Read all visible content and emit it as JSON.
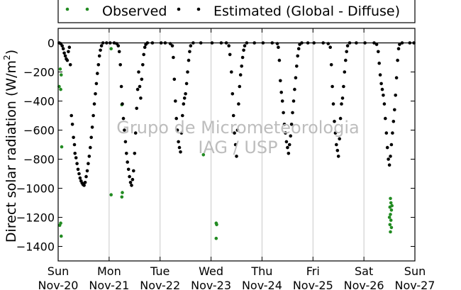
{
  "chart_data": {
    "type": "scatter",
    "ylabel": "Direct solar radiation (W/m²)",
    "ylabel_main": "Direct solar radiation (W/m",
    "ylabel_sup": "2",
    "ylabel_end": ")",
    "xlim": [
      0,
      7
    ],
    "ylim": [
      -1500,
      100
    ],
    "grid": "vertical",
    "legend_position": "top",
    "x_ticks": [
      {
        "x": 0,
        "day": "Sun",
        "date": "Nov-20"
      },
      {
        "x": 1,
        "day": "Mon",
        "date": "Nov-21"
      },
      {
        "x": 2,
        "day": "Tue",
        "date": "Nov-22"
      },
      {
        "x": 3,
        "day": "Wed",
        "date": "Nov-23"
      },
      {
        "x": 4,
        "day": "Thu",
        "date": "Nov-24"
      },
      {
        "x": 5,
        "day": "Fri",
        "date": "Nov-25"
      },
      {
        "x": 6,
        "day": "Sat",
        "date": "Nov-26"
      },
      {
        "x": 7,
        "day": "Sun",
        "date": "Nov-27"
      }
    ],
    "y_ticks": [
      0,
      -200,
      -400,
      -600,
      -800,
      -1000,
      -1200,
      -1400
    ],
    "watermark": [
      "Grupo de Micrometeorologia",
      "IAG / USP"
    ],
    "series": [
      {
        "name": "Observed",
        "color": "#228b22",
        "points": [
          [
            0.02,
            -300
          ],
          [
            0.04,
            -180
          ],
          [
            0.05,
            -320
          ],
          [
            0.06,
            -220
          ],
          [
            0.07,
            -715
          ],
          [
            0.03,
            -1255
          ],
          [
            0.05,
            -1240
          ],
          [
            0.06,
            -1330
          ],
          [
            1.04,
            -40
          ],
          [
            1.04,
            -1045
          ],
          [
            1.25,
            -425
          ],
          [
            1.26,
            -1030
          ],
          [
            1.25,
            -1060
          ],
          [
            2.85,
            -770
          ],
          [
            3.1,
            -1240
          ],
          [
            3.11,
            -1250
          ],
          [
            3.1,
            -1345
          ],
          [
            6.52,
            -1070
          ],
          [
            6.53,
            -1100
          ],
          [
            6.51,
            -1130
          ],
          [
            6.54,
            -1150
          ],
          [
            6.52,
            -1180
          ],
          [
            6.5,
            -1200
          ],
          [
            6.53,
            -1220
          ],
          [
            6.51,
            -1250
          ],
          [
            6.54,
            -1270
          ],
          [
            6.52,
            -1300
          ],
          [
            6.55,
            -1120
          ]
        ]
      },
      {
        "name": "Estimated (Global - Diffuse)",
        "color": "#000000",
        "points": [
          [
            0.02,
            0
          ],
          [
            0.05,
            -5
          ],
          [
            0.08,
            -20
          ],
          [
            0.1,
            -40
          ],
          [
            0.12,
            -70
          ],
          [
            0.14,
            -90
          ],
          [
            0.16,
            -110
          ],
          [
            0.18,
            -120
          ],
          [
            0.2,
            -60
          ],
          [
            0.22,
            -30
          ],
          [
            0.24,
            -150
          ],
          [
            0.26,
            -500
          ],
          [
            0.28,
            -560
          ],
          [
            0.3,
            -650
          ],
          [
            0.32,
            -700
          ],
          [
            0.33,
            -760
          ],
          [
            0.35,
            -790
          ],
          [
            0.37,
            -830
          ],
          [
            0.39,
            -870
          ],
          [
            0.41,
            -900
          ],
          [
            0.43,
            -930
          ],
          [
            0.45,
            -950
          ],
          [
            0.47,
            -965
          ],
          [
            0.49,
            -975
          ],
          [
            0.51,
            -980
          ],
          [
            0.53,
            -960
          ],
          [
            0.55,
            -920
          ],
          [
            0.57,
            -880
          ],
          [
            0.59,
            -830
          ],
          [
            0.61,
            -780
          ],
          [
            0.63,
            -720
          ],
          [
            0.65,
            -650
          ],
          [
            0.67,
            -580
          ],
          [
            0.69,
            -500
          ],
          [
            0.71,
            -420
          ],
          [
            0.73,
            -350
          ],
          [
            0.75,
            -280
          ],
          [
            0.77,
            -210
          ],
          [
            0.79,
            -150
          ],
          [
            0.81,
            -90
          ],
          [
            0.83,
            -50
          ],
          [
            0.85,
            -20
          ],
          [
            0.88,
            0
          ],
          [
            0.95,
            0
          ],
          [
            1.02,
            0
          ],
          [
            1.1,
            0
          ],
          [
            1.15,
            -5
          ],
          [
            1.18,
            -20
          ],
          [
            1.2,
            -60
          ],
          [
            1.22,
            -150
          ],
          [
            1.24,
            -300
          ],
          [
            1.26,
            -420
          ],
          [
            1.28,
            -520
          ],
          [
            1.3,
            -600
          ],
          [
            1.32,
            -680
          ],
          [
            1.34,
            -760
          ],
          [
            1.36,
            -820
          ],
          [
            1.38,
            -870
          ],
          [
            1.4,
            -920
          ],
          [
            1.42,
            -960
          ],
          [
            1.44,
            -980
          ],
          [
            1.46,
            -940
          ],
          [
            1.48,
            -880
          ],
          [
            1.5,
            -760
          ],
          [
            1.52,
            -620
          ],
          [
            1.54,
            -450
          ],
          [
            1.56,
            -320
          ],
          [
            1.58,
            -200
          ],
          [
            1.6,
            -300
          ],
          [
            1.62,
            -380
          ],
          [
            1.64,
            -250
          ],
          [
            1.66,
            -150
          ],
          [
            1.68,
            -80
          ],
          [
            1.7,
            -30
          ],
          [
            1.72,
            -10
          ],
          [
            1.75,
            0
          ],
          [
            1.85,
            0
          ],
          [
            2.02,
            0
          ],
          [
            2.1,
            0
          ],
          [
            2.2,
            -5
          ],
          [
            2.24,
            -20
          ],
          [
            2.26,
            -100
          ],
          [
            2.28,
            -250
          ],
          [
            2.3,
            -400
          ],
          [
            2.32,
            -520
          ],
          [
            2.34,
            -600
          ],
          [
            2.36,
            -680
          ],
          [
            2.38,
            -720
          ],
          [
            2.4,
            -750
          ],
          [
            2.42,
            -620
          ],
          [
            2.44,
            -500
          ],
          [
            2.46,
            -420
          ],
          [
            2.48,
            -380
          ],
          [
            2.5,
            -350
          ],
          [
            2.52,
            -280
          ],
          [
            2.54,
            -200
          ],
          [
            2.56,
            -120
          ],
          [
            2.58,
            -60
          ],
          [
            2.6,
            -20
          ],
          [
            2.65,
            0
          ],
          [
            2.8,
            0
          ],
          [
            3.02,
            0
          ],
          [
            3.2,
            0
          ],
          [
            3.3,
            0
          ],
          [
            3.35,
            -20
          ],
          [
            3.37,
            -80
          ],
          [
            3.4,
            -200
          ],
          [
            3.42,
            -350
          ],
          [
            3.44,
            -500
          ],
          [
            3.46,
            -620
          ],
          [
            3.48,
            -700
          ],
          [
            3.5,
            -780
          ],
          [
            3.52,
            -600
          ],
          [
            3.54,
            -420
          ],
          [
            3.56,
            -300
          ],
          [
            3.58,
            -220
          ],
          [
            3.6,
            -160
          ],
          [
            3.62,
            -100
          ],
          [
            3.64,
            -50
          ],
          [
            3.66,
            -20
          ],
          [
            3.7,
            0
          ],
          [
            3.85,
            0
          ],
          [
            4.02,
            0
          ],
          [
            4.2,
            0
          ],
          [
            4.3,
            -5
          ],
          [
            4.32,
            -30
          ],
          [
            4.34,
            -120
          ],
          [
            4.36,
            -260
          ],
          [
            4.38,
            -340
          ],
          [
            4.4,
            -400
          ],
          [
            4.42,
            -480
          ],
          [
            4.44,
            -560
          ],
          [
            4.46,
            -620
          ],
          [
            4.48,
            -680
          ],
          [
            4.5,
            -720
          ],
          [
            4.52,
            -760
          ],
          [
            4.54,
            -700
          ],
          [
            4.56,
            -640
          ],
          [
            4.58,
            -560
          ],
          [
            4.6,
            -480
          ],
          [
            4.62,
            -400
          ],
          [
            4.64,
            -320
          ],
          [
            4.66,
            -240
          ],
          [
            4.68,
            -160
          ],
          [
            4.7,
            -90
          ],
          [
            4.72,
            -40
          ],
          [
            4.74,
            -10
          ],
          [
            4.78,
            0
          ],
          [
            4.9,
            0
          ],
          [
            5.02,
            0
          ],
          [
            5.2,
            0
          ],
          [
            5.3,
            -5
          ],
          [
            5.34,
            -30
          ],
          [
            5.36,
            -150
          ],
          [
            5.38,
            -300
          ],
          [
            5.4,
            -420
          ],
          [
            5.42,
            -540
          ],
          [
            5.44,
            -620
          ],
          [
            5.46,
            -700
          ],
          [
            5.48,
            -740
          ],
          [
            5.5,
            -780
          ],
          [
            5.52,
            -660
          ],
          [
            5.54,
            -520
          ],
          [
            5.56,
            -420
          ],
          [
            5.58,
            -380
          ],
          [
            5.6,
            -300
          ],
          [
            5.62,
            -200
          ],
          [
            5.64,
            -120
          ],
          [
            5.66,
            -60
          ],
          [
            5.68,
            -20
          ],
          [
            5.72,
            0
          ],
          [
            5.85,
            0
          ],
          [
            6.02,
            0
          ],
          [
            6.2,
            0
          ],
          [
            6.25,
            -10
          ],
          [
            6.28,
            -60
          ],
          [
            6.3,
            -140
          ],
          [
            6.32,
            -220
          ],
          [
            6.34,
            -280
          ],
          [
            6.36,
            -320
          ],
          [
            6.38,
            -360
          ],
          [
            6.4,
            -420
          ],
          [
            6.42,
            -520
          ],
          [
            6.44,
            -620
          ],
          [
            6.46,
            -720
          ],
          [
            6.48,
            -800
          ],
          [
            6.5,
            -840
          ],
          [
            6.52,
            -780
          ],
          [
            6.54,
            -700
          ],
          [
            6.56,
            -620
          ],
          [
            6.58,
            -540
          ],
          [
            6.6,
            -460
          ],
          [
            6.62,
            -360
          ],
          [
            6.64,
            -240
          ],
          [
            6.66,
            -120
          ],
          [
            6.68,
            -40
          ],
          [
            6.7,
            -10
          ],
          [
            6.75,
            0
          ],
          [
            6.9,
            0
          ],
          [
            6.98,
            0
          ]
        ]
      }
    ]
  }
}
